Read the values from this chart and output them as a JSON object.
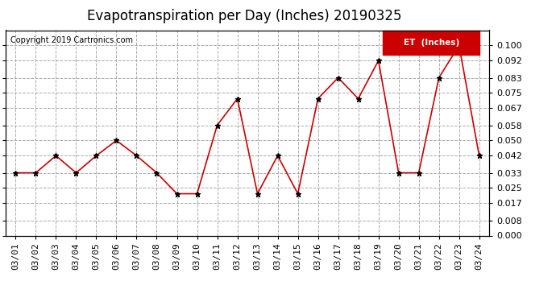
{
  "title": "Evapotranspiration per Day (Inches) 20190325",
  "copyright": "Copyright 2019 Cartronics.com",
  "legend_label": "ET  (Inches)",
  "dates": [
    "03/01",
    "03/02",
    "03/03",
    "03/04",
    "03/05",
    "03/06",
    "03/07",
    "03/08",
    "03/09",
    "03/10",
    "03/11",
    "03/12",
    "03/13",
    "03/14",
    "03/15",
    "03/16",
    "03/17",
    "03/18",
    "03/19",
    "03/20",
    "03/21",
    "03/22",
    "03/23",
    "03/24"
  ],
  "values": [
    0.033,
    0.033,
    0.042,
    0.033,
    0.042,
    0.05,
    0.042,
    0.033,
    0.022,
    0.022,
    0.058,
    0.072,
    0.022,
    0.042,
    0.022,
    0.072,
    0.083,
    0.072,
    0.092,
    0.033,
    0.033,
    0.083,
    0.1,
    0.042
  ],
  "line_color": "#cc0000",
  "marker": "*",
  "marker_color": "#000000",
  "marker_size": 5,
  "ylim": [
    0.0,
    0.108
  ],
  "yticks": [
    0.0,
    0.008,
    0.017,
    0.025,
    0.033,
    0.042,
    0.05,
    0.058,
    0.067,
    0.075,
    0.083,
    0.092,
    0.1
  ],
  "background_color": "#ffffff",
  "grid_color": "#aaaaaa",
  "title_fontsize": 12,
  "label_fontsize": 8,
  "copyright_fontsize": 7,
  "legend_bg": "#cc0000",
  "legend_text_color": "#ffffff"
}
